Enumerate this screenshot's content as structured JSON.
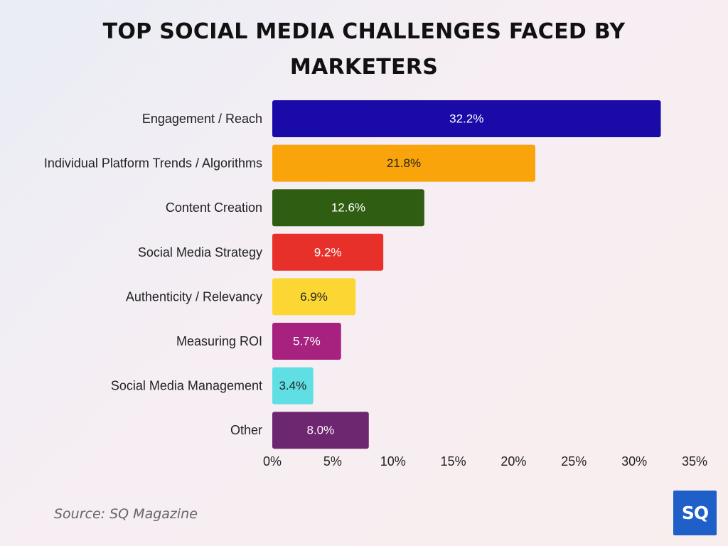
{
  "title": "TOP SOCIAL MEDIA CHALLENGES FACED BY MARKETERS",
  "source": "Source: SQ Magazine",
  "logo_text": "SQ",
  "chart_data": {
    "type": "bar",
    "orientation": "horizontal",
    "title": "TOP SOCIAL MEDIA CHALLENGES FACED BY MARKETERS",
    "categories": [
      "Engagement / Reach",
      "Individual Platform Trends / Algorithms",
      "Content Creation",
      "Social Media Strategy",
      "Authenticity / Relevancy",
      "Measuring ROI",
      "Social Media Management",
      "Other"
    ],
    "values": [
      32.2,
      21.8,
      12.6,
      9.2,
      6.9,
      5.7,
      3.4,
      8.0
    ],
    "value_labels": [
      "32.2%",
      "21.8%",
      "12.6%",
      "9.2%",
      "6.9%",
      "5.7%",
      "3.4%",
      "8.0%"
    ],
    "colors": [
      "#1a0aa8",
      "#f8a40a",
      "#2f5e12",
      "#e8302a",
      "#fcd734",
      "#a7227f",
      "#5fdfe4",
      "#6d2670"
    ],
    "label_colors": [
      "#ffffff",
      "#222222",
      "#ffffff",
      "#ffffff",
      "#222222",
      "#ffffff",
      "#222222",
      "#ffffff"
    ],
    "xlim": [
      0,
      35
    ],
    "xticks": [
      0,
      5,
      10,
      15,
      20,
      25,
      30,
      35
    ],
    "xtick_labels": [
      "0%",
      "5%",
      "10%",
      "15%",
      "20%",
      "25%",
      "30%",
      "35%"
    ],
    "xlabel": "",
    "ylabel": "",
    "grid": false,
    "legend": "none"
  }
}
